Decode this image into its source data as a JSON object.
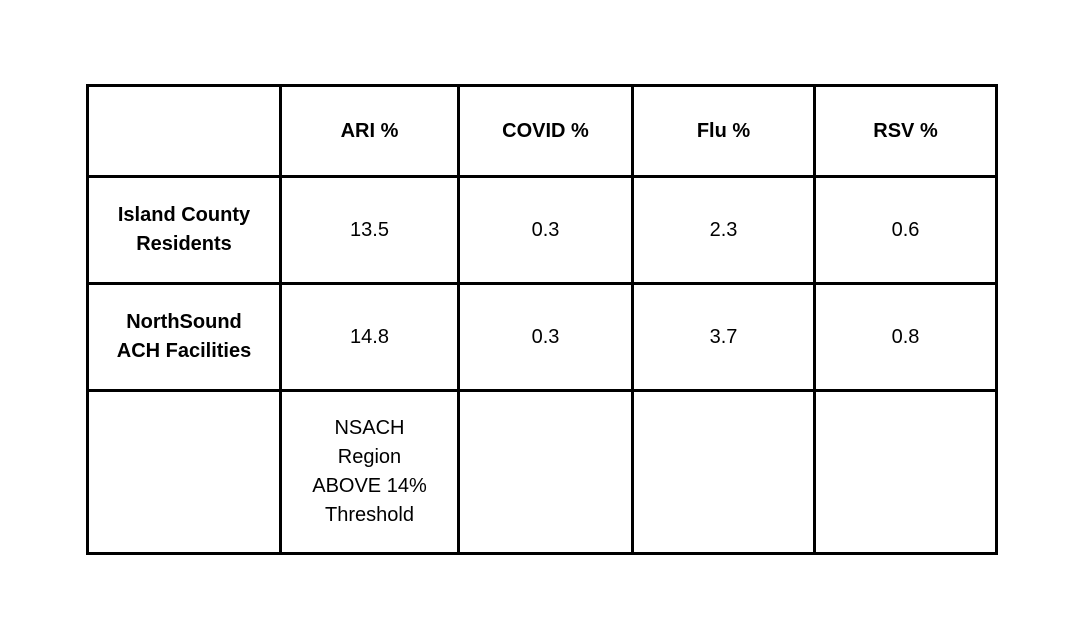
{
  "table": {
    "headers": [
      "",
      "ARI %",
      "COVID %",
      "Flu %",
      "RSV %"
    ],
    "rows": [
      {
        "label_lines": [
          "Island County",
          "Residents"
        ],
        "values": [
          "13.5",
          "0.3",
          "2.3",
          "0.6"
        ]
      },
      {
        "label_lines": [
          "NorthSound",
          "ACH Facilities"
        ],
        "values": [
          "14.8",
          "0.3",
          "3.7",
          "0.8"
        ]
      }
    ],
    "note_row": {
      "ari_note_lines": [
        "NSACH",
        "Region",
        "ABOVE 14%",
        "Threshold"
      ]
    }
  }
}
